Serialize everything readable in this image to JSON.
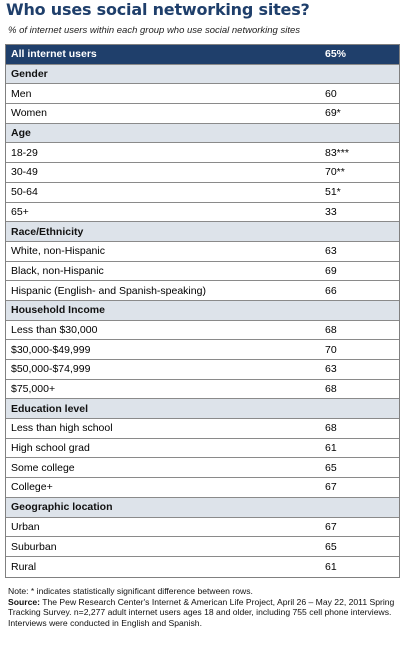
{
  "title": "Who uses social networking sites?",
  "subtitle": "% of internet users within each group who use social networking sites",
  "total": {
    "label": "All internet users",
    "value": "65%"
  },
  "sections": [
    {
      "heading": "Gender",
      "rows": [
        {
          "label": "Men",
          "value": "60"
        },
        {
          "label": "Women",
          "value": "69*"
        }
      ]
    },
    {
      "heading": "Age",
      "rows": [
        {
          "label": "18-29",
          "value": "83***"
        },
        {
          "label": "30-49",
          "value": "70**"
        },
        {
          "label": "50-64",
          "value": "51*"
        },
        {
          "label": "65+",
          "value": "33"
        }
      ]
    },
    {
      "heading": "Race/Ethnicity",
      "rows": [
        {
          "label": "White, non-Hispanic",
          "value": "63"
        },
        {
          "label": "Black, non-Hispanic",
          "value": "69"
        },
        {
          "label": "Hispanic (English- and Spanish-speaking)",
          "value": "66"
        }
      ]
    },
    {
      "heading": "Household Income",
      "rows": [
        {
          "label": "Less than $30,000",
          "value": "68"
        },
        {
          "label": "$30,000-$49,999",
          "value": "70"
        },
        {
          "label": "$50,000-$74,999",
          "value": "63"
        },
        {
          "label": "$75,000+",
          "value": "68"
        }
      ]
    },
    {
      "heading": "Education level",
      "rows": [
        {
          "label": "Less than high school",
          "value": "68"
        },
        {
          "label": "High school grad",
          "value": "61"
        },
        {
          "label": "Some college",
          "value": "65"
        },
        {
          "label": "College+",
          "value": "67"
        }
      ]
    },
    {
      "heading": "Geographic location",
      "rows": [
        {
          "label": "Urban",
          "value": "67"
        },
        {
          "label": "Suburban",
          "value": "65"
        },
        {
          "label": "Rural",
          "value": "61"
        }
      ]
    }
  ],
  "notes": {
    "note_text": "Note: * indicates statistically significant difference between rows.",
    "source_label": "Source:",
    "source_text": " The Pew Research Center's Internet & American Life Project, April 26 – May 22, 2011 Spring Tracking Survey. n=2,277 adult internet users ages 18 and older, including 755 cell phone interviews. Interviews were conducted in English and Spanish."
  }
}
